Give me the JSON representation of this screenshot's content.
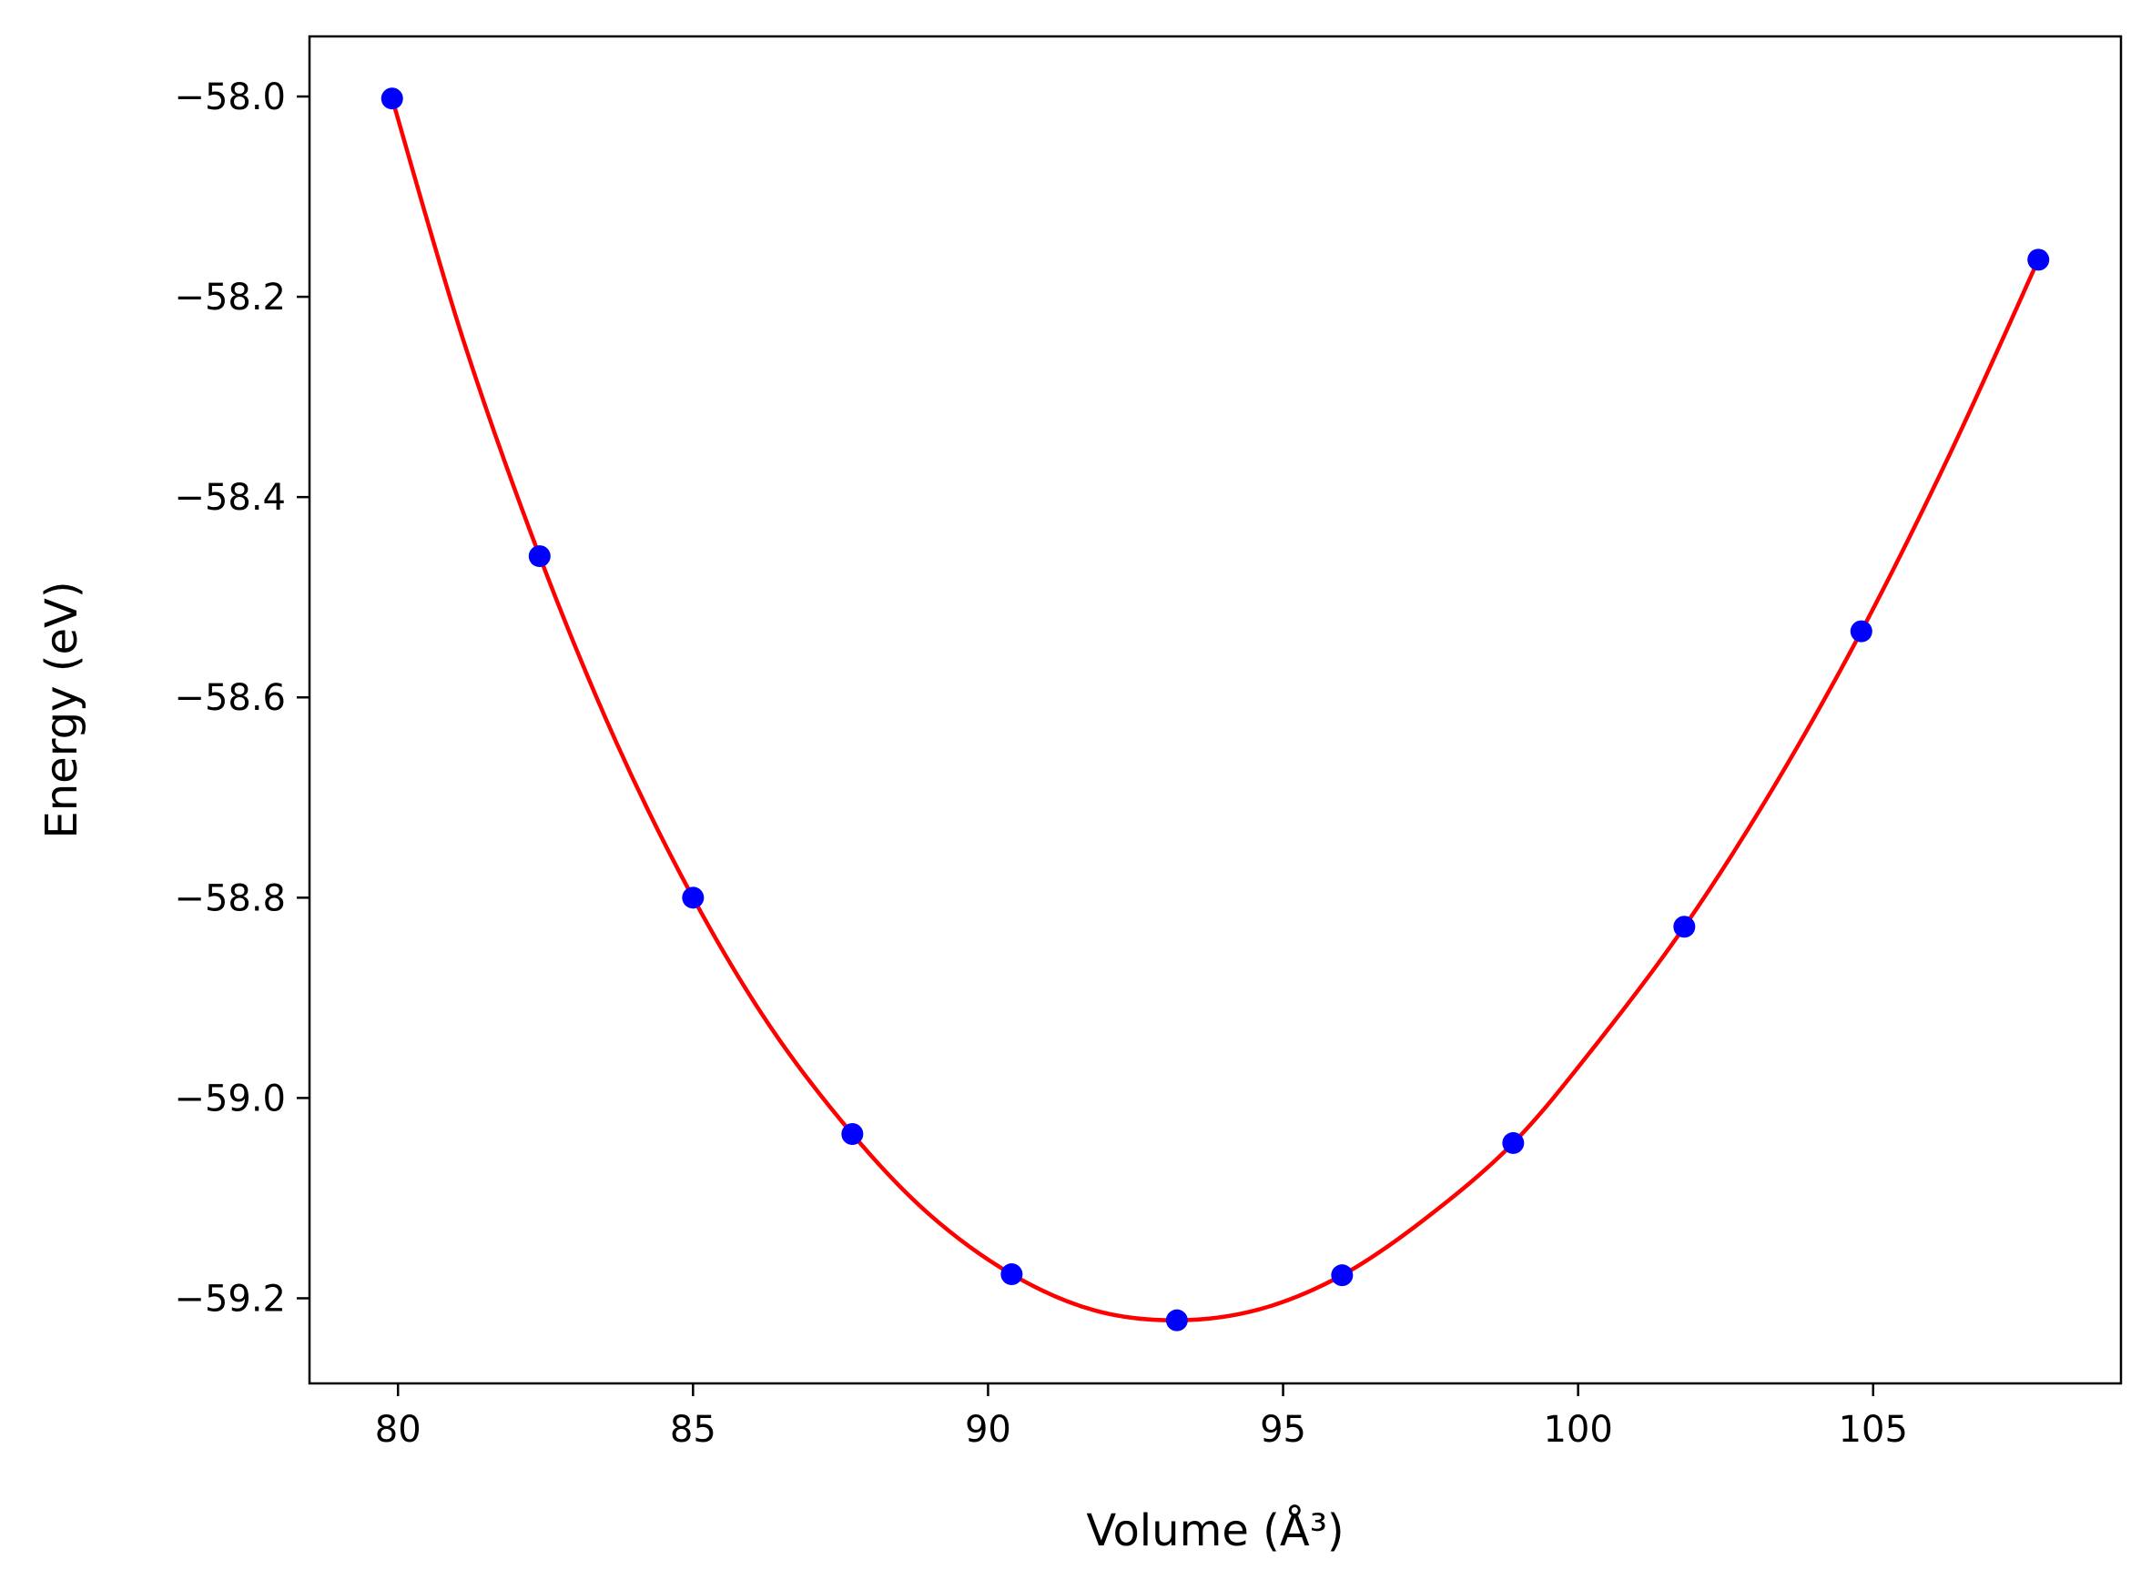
{
  "chart_data": {
    "type": "line",
    "title": "",
    "xlabel": "Volume",
    "xlabel_unit": "(Å³)",
    "ylabel": "Energy",
    "ylabel_unit": "(eV)",
    "xlim": [
      78.5,
      109.2
    ],
    "ylim": [
      -59.285,
      -57.94
    ],
    "xticks": [
      80,
      85,
      90,
      95,
      100,
      105
    ],
    "xtick_labels": [
      "80",
      "85",
      "90",
      "95",
      "100",
      "105"
    ],
    "yticks": [
      -58.0,
      -58.2,
      -58.4,
      -58.6,
      -58.8,
      -59.0,
      -59.2
    ],
    "ytick_labels": [
      "−58.0",
      "−58.2",
      "−58.4",
      "−58.6",
      "−58.8",
      "−59.0",
      "−59.2"
    ],
    "grid": false,
    "legend": "none",
    "series": [
      {
        "kind": "scatter",
        "color": "#0000ff",
        "x": [
          79.9,
          82.4,
          85.0,
          87.7,
          90.4,
          93.2,
          96.0,
          98.9,
          101.8,
          104.8,
          107.8
        ],
        "y": [
          -58.002,
          -58.459,
          -58.8,
          -59.036,
          -59.176,
          -59.222,
          -59.177,
          -59.045,
          -58.829,
          -58.534,
          -58.163
        ]
      },
      {
        "kind": "fit",
        "color": "#ff0000",
        "x": [
          79.9,
          81.1,
          82.4,
          83.7,
          85.0,
          86.3,
          87.7,
          89.0,
          90.4,
          91.8,
          93.2,
          94.6,
          96.0,
          97.4,
          98.9,
          100.3,
          101.8,
          103.3,
          104.8,
          106.3,
          107.8
        ],
        "y": [
          -58.002,
          -58.242,
          -58.459,
          -58.645,
          -58.8,
          -58.928,
          -59.036,
          -59.116,
          -59.176,
          -59.212,
          -59.222,
          -59.211,
          -59.177,
          -59.121,
          -59.045,
          -58.947,
          -58.829,
          -58.691,
          -58.534,
          -58.357,
          -58.163
        ]
      }
    ]
  }
}
